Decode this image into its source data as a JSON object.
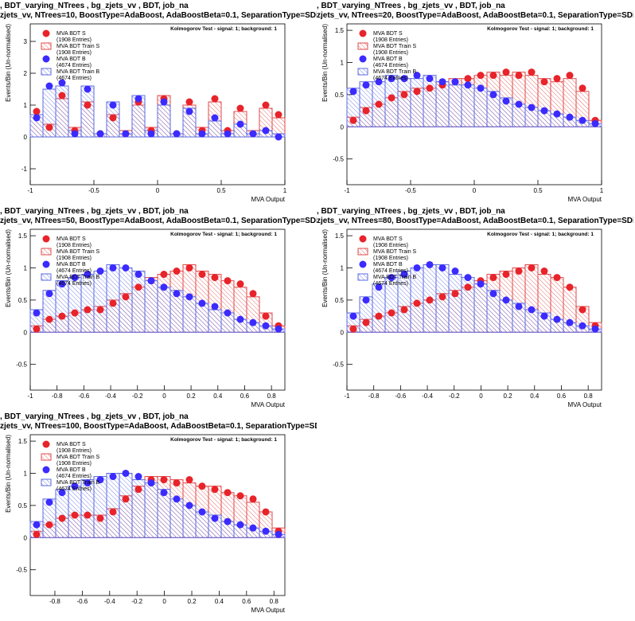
{
  "chart_data": [
    {
      "type": "histogram",
      "title": ", BDT_varying_NTrees , bg_zjets_vv , BDT, job_na",
      "subtitle": "zjets_vv, NTrees=10, BoostType=AdaBoost, AdaBoostBeta=0.1, SeparationType=SDivSqrtSPl",
      "annotation": "Kolmogorov Test - signal: 1; background: 1",
      "x_label": "MVA Output",
      "y_label": "Events/Bin (Un-normalised)",
      "xlim": [
        -1,
        1
      ],
      "xticks": [
        -1,
        -0.5,
        0,
        0.5,
        1
      ],
      "ylim": [
        -1.5,
        3.55
      ],
      "yticks": [
        -1,
        0,
        1,
        2,
        3
      ],
      "bins": [
        -1,
        -0.9,
        -0.8,
        -0.7,
        -0.6,
        -0.5,
        -0.4,
        -0.3,
        -0.2,
        -0.1,
        0,
        0.1,
        0.2,
        0.3,
        0.4,
        0.5,
        0.6,
        0.7,
        0.8,
        0.9,
        1
      ],
      "series": [
        {
          "name": "MVA BDT S",
          "entries": "(1908 Entries)",
          "color": "#e8232a",
          "style": "points",
          "values": [
            0.8,
            0.3,
            1.3,
            0.2,
            1.0,
            0.1,
            0.6,
            0.1,
            1.1,
            0.2,
            1.2,
            0.1,
            1.1,
            0.2,
            1.2,
            0.2,
            0.9,
            0.1,
            1.0,
            0.7
          ]
        },
        {
          "name": "MVA BDT Train S",
          "entries": "(1908 Entries)",
          "color": "#e04848",
          "style": "hatched",
          "values": [
            0.7,
            0.4,
            1.2,
            0.3,
            1.1,
            0.1,
            0.7,
            0.2,
            1.0,
            0.3,
            1.3,
            0.1,
            1.0,
            0.3,
            1.1,
            0.2,
            0.8,
            0.2,
            0.9,
            0.6
          ]
        },
        {
          "name": "MVA BDT B",
          "entries": "(4674 Entries)",
          "color": "#3b2bff",
          "style": "points",
          "values": [
            0.6,
            1.6,
            1.7,
            0.1,
            1.5,
            0.1,
            1.0,
            0.1,
            1.2,
            0.1,
            1.1,
            0.1,
            0.8,
            0.1,
            0.6,
            0.1,
            0.4,
            0.1,
            0.2,
            0.0
          ]
        },
        {
          "name": "MVA BDT Train B",
          "entries": "(4674 Entries)",
          "color": "#5a6ae0",
          "style": "hatched",
          "values": [
            0.7,
            1.5,
            1.6,
            0.2,
            1.6,
            0.1,
            1.1,
            0.1,
            1.3,
            0.2,
            1.0,
            0.1,
            0.9,
            0.1,
            0.5,
            0.1,
            0.4,
            0.1,
            0.2,
            0.1
          ]
        }
      ]
    },
    {
      "type": "histogram",
      "title": ", BDT_varying_NTrees , bg_zjets_vv , BDT, job_na",
      "subtitle": "zjets_vv, NTrees=20, BoostType=AdaBoost, AdaBoostBeta=0.1, SeparationType=SDivSqrtSPl",
      "annotation": "Kolmogorov Test - signal: 1; background: 1",
      "x_label": "MVA Output",
      "y_label": "Events/Bin (Un-normalised)",
      "xlim": [
        -1,
        1
      ],
      "xticks": [
        -1,
        -0.5,
        0,
        0.5,
        1
      ],
      "ylim": [
        -0.9,
        1.6
      ],
      "yticks": [
        -0.5,
        0,
        0.5,
        1,
        1.5
      ],
      "bins": [
        -1,
        -0.9,
        -0.8,
        -0.7,
        -0.6,
        -0.5,
        -0.4,
        -0.3,
        -0.2,
        -0.1,
        0,
        0.1,
        0.2,
        0.3,
        0.4,
        0.5,
        0.6,
        0.7,
        0.8,
        0.9,
        1
      ],
      "series": [
        {
          "name": "MVA BDT S",
          "entries": "(1908 Entries)",
          "color": "#e8232a",
          "style": "points",
          "values": [
            0.1,
            0.25,
            0.35,
            0.45,
            0.5,
            0.55,
            0.6,
            0.65,
            0.7,
            0.75,
            0.8,
            0.8,
            0.85,
            0.8,
            0.85,
            0.7,
            0.75,
            0.8,
            0.6,
            0.1
          ]
        },
        {
          "name": "MVA BDT Train S",
          "entries": "(1908 Entries)",
          "color": "#e04848",
          "style": "hatched",
          "values": [
            0.15,
            0.3,
            0.35,
            0.45,
            0.55,
            0.6,
            0.6,
            0.7,
            0.75,
            0.75,
            0.8,
            0.85,
            0.8,
            0.85,
            0.8,
            0.75,
            0.7,
            0.75,
            0.55,
            0.1
          ]
        },
        {
          "name": "MVA BDT B",
          "entries": "(4674 Entries)",
          "color": "#3b2bff",
          "style": "points",
          "values": [
            0.55,
            0.65,
            0.7,
            0.75,
            0.75,
            0.8,
            0.75,
            0.7,
            0.7,
            0.65,
            0.6,
            0.5,
            0.4,
            0.35,
            0.3,
            0.25,
            0.2,
            0.15,
            0.1,
            0.05
          ]
        },
        {
          "name": "MVA BDT Train B",
          "entries": "(4674 Entries)",
          "color": "#5a6ae0",
          "style": "hatched",
          "values": [
            0.6,
            0.7,
            0.7,
            0.8,
            0.75,
            0.75,
            0.8,
            0.7,
            0.65,
            0.65,
            0.6,
            0.55,
            0.45,
            0.35,
            0.3,
            0.25,
            0.2,
            0.15,
            0.1,
            0.05
          ]
        }
      ]
    },
    {
      "type": "histogram",
      "title": ", BDT_varying_NTrees , bg_zjets_vv , BDT, job_na",
      "subtitle": "zjets_vv, NTrees=50, BoostType=AdaBoost, AdaBoostBeta=0.1, SeparationType=SDivSqrtSPl",
      "annotation": "Kolmogorov Test - signal: 1; background: 1",
      "x_label": "MVA Output",
      "y_label": "Events/Bin (Un-normalised)",
      "xlim": [
        -1,
        0.9
      ],
      "xticks": [
        -1,
        -0.8,
        -0.6,
        -0.4,
        -0.2,
        0,
        0.2,
        0.4,
        0.6,
        0.8
      ],
      "ylim": [
        -0.9,
        1.6
      ],
      "yticks": [
        -0.5,
        0,
        0.5,
        1,
        1.5
      ],
      "bins": [
        -1,
        -0.905,
        -0.81,
        -0.715,
        -0.62,
        -0.525,
        -0.43,
        -0.335,
        -0.24,
        -0.145,
        -0.05,
        0.045,
        0.14,
        0.235,
        0.33,
        0.425,
        0.52,
        0.615,
        0.71,
        0.805,
        0.9
      ],
      "series": [
        {
          "name": "MVA BDT S",
          "entries": "(1908 Entries)",
          "color": "#e8232a",
          "style": "points",
          "values": [
            0.05,
            0.2,
            0.25,
            0.3,
            0.35,
            0.35,
            0.45,
            0.55,
            0.7,
            0.8,
            0.9,
            0.95,
            1.0,
            0.9,
            0.85,
            0.8,
            0.75,
            0.6,
            0.25,
            0.1
          ]
        },
        {
          "name": "MVA BDT Train S",
          "entries": "(1908 Entries)",
          "color": "#e04848",
          "style": "hatched",
          "values": [
            0.1,
            0.2,
            0.25,
            0.3,
            0.35,
            0.4,
            0.5,
            0.6,
            0.7,
            0.85,
            0.9,
            0.95,
            1.05,
            0.95,
            0.9,
            0.8,
            0.7,
            0.55,
            0.3,
            0.1
          ]
        },
        {
          "name": "MVA BDT B",
          "entries": "(4674 Entries)",
          "color": "#3b2bff",
          "style": "points",
          "values": [
            0.3,
            0.6,
            0.75,
            0.85,
            0.9,
            0.95,
            1.0,
            1.0,
            0.9,
            0.8,
            0.7,
            0.6,
            0.55,
            0.45,
            0.4,
            0.3,
            0.2,
            0.15,
            0.1,
            0.05
          ]
        },
        {
          "name": "MVA BDT Train B",
          "entries": "(4674 Entries)",
          "color": "#5a6ae0",
          "style": "hatched",
          "values": [
            0.35,
            0.65,
            0.8,
            0.85,
            0.9,
            0.95,
            1.05,
            1.0,
            0.95,
            0.8,
            0.7,
            0.65,
            0.55,
            0.45,
            0.35,
            0.3,
            0.2,
            0.15,
            0.1,
            0.05
          ]
        }
      ]
    },
    {
      "type": "histogram",
      "title": ", BDT_varying_NTrees , bg_zjets_vv , BDT, job_na",
      "subtitle": "zjets_vv, NTrees=80, BoostType=AdaBoost, AdaBoostBeta=0.1, SeparationType=SDivSqrtSPl",
      "annotation": "Kolmogorov Test - signal: 1; background: 1",
      "x_label": "MVA Output",
      "y_label": "Events/Bin (Un-normalised)",
      "xlim": [
        -1,
        0.9
      ],
      "xticks": [
        -1,
        -0.8,
        -0.6,
        -0.4,
        -0.2,
        0,
        0.2,
        0.4,
        0.6,
        0.8
      ],
      "ylim": [
        -0.9,
        1.6
      ],
      "yticks": [
        -0.5,
        0,
        0.5,
        1,
        1.5
      ],
      "bins": [
        -1,
        -0.905,
        -0.81,
        -0.715,
        -0.62,
        -0.525,
        -0.43,
        -0.335,
        -0.24,
        -0.145,
        -0.05,
        0.045,
        0.14,
        0.235,
        0.33,
        0.425,
        0.52,
        0.615,
        0.71,
        0.805,
        0.9
      ],
      "series": [
        {
          "name": "MVA BDT S",
          "entries": "(1908 Entries)",
          "color": "#e8232a",
          "style": "points",
          "values": [
            0.05,
            0.15,
            0.25,
            0.3,
            0.35,
            0.45,
            0.5,
            0.55,
            0.6,
            0.7,
            0.8,
            0.85,
            0.9,
            0.95,
            1.0,
            0.95,
            0.85,
            0.7,
            0.35,
            0.1
          ]
        },
        {
          "name": "MVA BDT Train S",
          "entries": "(1908 Entries)",
          "color": "#e04848",
          "style": "hatched",
          "values": [
            0.1,
            0.2,
            0.25,
            0.3,
            0.4,
            0.45,
            0.5,
            0.6,
            0.65,
            0.7,
            0.8,
            0.9,
            0.95,
            1.0,
            1.05,
            0.9,
            0.85,
            0.7,
            0.4,
            0.15
          ]
        },
        {
          "name": "MVA BDT B",
          "entries": "(4674 Entries)",
          "color": "#3b2bff",
          "style": "points",
          "values": [
            0.25,
            0.5,
            0.7,
            0.85,
            0.9,
            1.0,
            1.05,
            1.0,
            0.95,
            0.85,
            0.75,
            0.6,
            0.5,
            0.4,
            0.35,
            0.25,
            0.2,
            0.15,
            0.1,
            0.05
          ]
        },
        {
          "name": "MVA BDT Train B",
          "entries": "(4674 Entries)",
          "color": "#5a6ae0",
          "style": "hatched",
          "values": [
            0.3,
            0.55,
            0.75,
            0.85,
            0.95,
            1.0,
            1.05,
            1.05,
            0.9,
            0.85,
            0.75,
            0.65,
            0.5,
            0.45,
            0.35,
            0.3,
            0.2,
            0.15,
            0.1,
            0.05
          ]
        }
      ]
    },
    {
      "type": "histogram",
      "title": ", BDT_varying_NTrees , bg_zjets_vv , BDT, job_na",
      "subtitle": "zjets_vv, NTrees=100, BoostType=AdaBoost, AdaBoostBeta=0.1, SeparationType=SDivSqrtSPl",
      "annotation": "Kolmogorov Test - signal: 1; background: 1",
      "x_label": "MVA Output",
      "y_label": "Events/Bin (Un-normalised)",
      "xlim": [
        -0.98,
        0.88
      ],
      "xticks": [
        -0.8,
        -0.6,
        -0.4,
        -0.2,
        0,
        0.2,
        0.4,
        0.6,
        0.8
      ],
      "ylim": [
        -0.9,
        1.6
      ],
      "yticks": [
        -0.5,
        0,
        0.5,
        1,
        1.5
      ],
      "bins": [
        -0.98,
        -0.887,
        -0.794,
        -0.701,
        -0.608,
        -0.515,
        -0.422,
        -0.329,
        -0.236,
        -0.143,
        -0.05,
        0.043,
        0.136,
        0.229,
        0.322,
        0.415,
        0.508,
        0.601,
        0.694,
        0.787,
        0.88
      ],
      "series": [
        {
          "name": "MVA BDT S",
          "entries": "(1908 Entries)",
          "color": "#e8232a",
          "style": "points",
          "values": [
            0.05,
            0.2,
            0.3,
            0.35,
            0.35,
            0.3,
            0.4,
            0.6,
            0.75,
            0.9,
            0.9,
            0.85,
            0.9,
            0.8,
            0.75,
            0.7,
            0.65,
            0.6,
            0.4,
            0.1
          ]
        },
        {
          "name": "MVA BDT Train S",
          "entries": "(1908 Entries)",
          "color": "#e04848",
          "style": "hatched",
          "values": [
            0.1,
            0.2,
            0.3,
            0.35,
            0.35,
            0.35,
            0.45,
            0.65,
            0.8,
            0.95,
            0.95,
            0.9,
            0.85,
            0.8,
            0.8,
            0.7,
            0.65,
            0.55,
            0.4,
            0.15
          ]
        },
        {
          "name": "MVA BDT B",
          "entries": "(4674 Entries)",
          "color": "#3b2bff",
          "style": "points",
          "values": [
            0.2,
            0.55,
            0.7,
            0.8,
            0.85,
            0.9,
            0.95,
            1.0,
            0.95,
            0.85,
            0.7,
            0.6,
            0.5,
            0.4,
            0.3,
            0.25,
            0.2,
            0.15,
            0.1,
            0.05
          ]
        },
        {
          "name": "MVA BDT Train B",
          "entries": "(4674 Entries)",
          "color": "#5a6ae0",
          "style": "hatched",
          "values": [
            0.25,
            0.6,
            0.75,
            0.8,
            0.9,
            0.95,
            1.0,
            1.0,
            0.9,
            0.85,
            0.75,
            0.6,
            0.5,
            0.4,
            0.35,
            0.25,
            0.2,
            0.15,
            0.1,
            0.05
          ]
        }
      ]
    }
  ]
}
